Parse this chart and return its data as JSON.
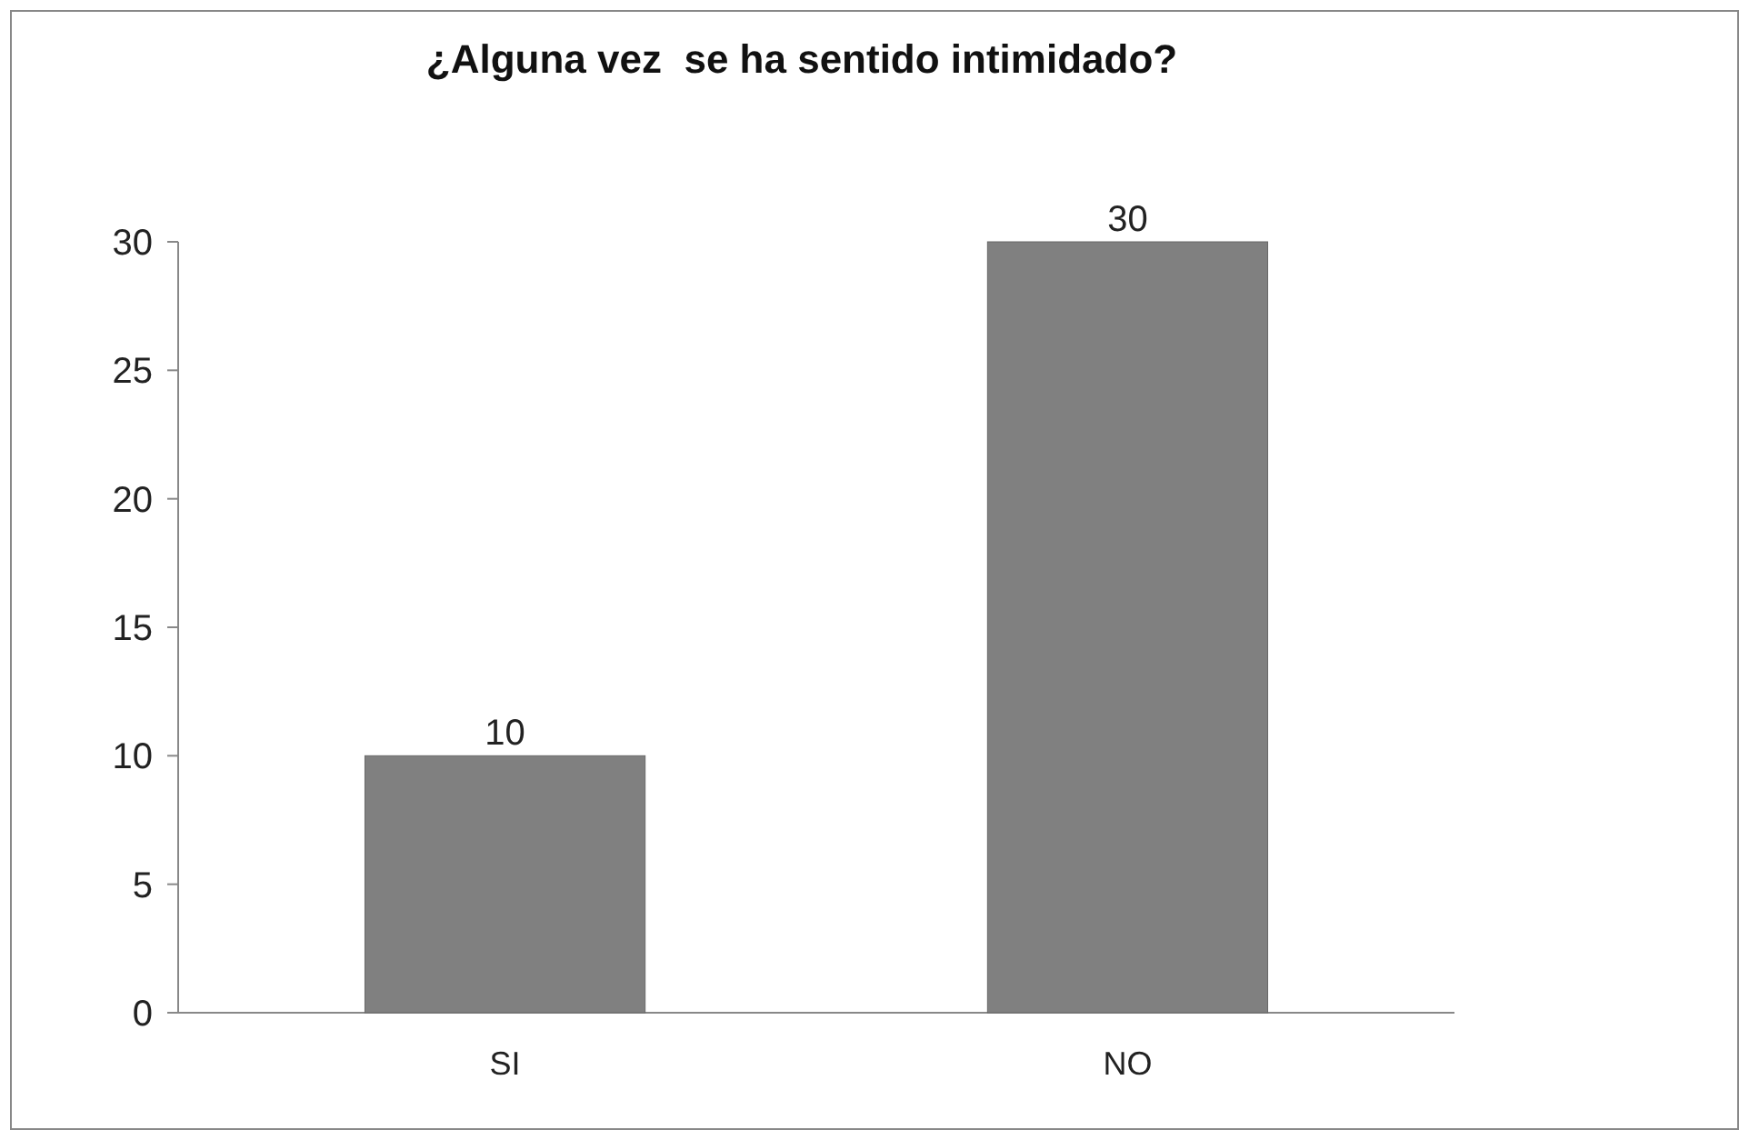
{
  "chart_data": {
    "type": "bar",
    "title": "¿Alguna vez  se ha sentido intimidado?",
    "categories": [
      "SI",
      "NO"
    ],
    "values": [
      10,
      30
    ],
    "color": "#808080",
    "ylim": [
      0,
      30
    ],
    "yticks": [
      0,
      5,
      10,
      15,
      20,
      25,
      30
    ],
    "data_labels": true
  }
}
